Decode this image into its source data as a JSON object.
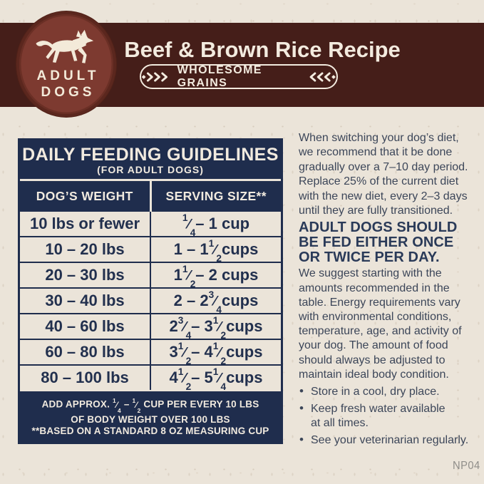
{
  "page": {
    "background": "#ebe4d9",
    "code": "NP04"
  },
  "colors": {
    "band_maroon": "#451e19",
    "badge_red": "#7d3a30",
    "navy": "#1f2d4d",
    "cream_text": "#f3ebdf",
    "body_text": "#3c4659"
  },
  "header": {
    "badge": {
      "line1": "ADULT",
      "line2": "DOGS",
      "icon": "running-dog"
    },
    "title": "Beef & Brown Rice Recipe",
    "banner": {
      "label": "WHOLESOME GRAINS",
      "left_icon": "wheat-chevrons",
      "right_icon": "wheat-chevrons"
    }
  },
  "table": {
    "title": "DAILY FEEDING GUIDELINES",
    "subtitle": "(FOR ADULT DOGS)",
    "columns": [
      "DOG’S WEIGHT",
      "SERVING SIZE**"
    ],
    "rows": [
      {
        "weight": "10 lbs or fewer",
        "serving": "[1/4] – 1 cup"
      },
      {
        "weight": "10 – 20 lbs",
        "serving": "1 – 1 [1/2] cups"
      },
      {
        "weight": "20 – 30 lbs",
        "serving": "1 [1/2] – 2 cups"
      },
      {
        "weight": "30 – 40 lbs",
        "serving": "2 – 2 [3/4] cups"
      },
      {
        "weight": "40 – 60 lbs",
        "serving": "2 [3/4] – 3 [1/2] cups"
      },
      {
        "weight": "60 – 80 lbs",
        "serving": "3 [1/2] – 4 [1/2] cups"
      },
      {
        "weight": "80 – 100 lbs",
        "serving": "4 [1/2] – 5 [1/4] cups"
      }
    ],
    "footnote_overage": "ADD APPROX. [1/4] – [1/2] CUP PER EVERY 10 LBS\nOF BODY WEIGHT OVER 100 LBS",
    "footnote_cup": "**BASED ON A STANDARD 8 OZ MEASURING CUP"
  },
  "info": {
    "bullet_glyph": "•",
    "paragraph1": "When switching your dog’s diet,\nwe recommend that it be done\ngradually over a 7–10 day period.\nReplace 25% of the current diet\nwith the new diet, every 2–3 days\nuntil they are fully transitioned.",
    "heading": "ADULT DOGS SHOULD\nBE FED EITHER ONCE\nOR TWICE PER DAY.",
    "paragraph2": "We suggest starting with the\namounts recommended in the\ntable. Energy requirements vary\nwith environmental conditions,\ntemperature, age, and activity of\nyour dog. The amount of food\nshould always be adjusted to\nmaintain ideal body condition.",
    "bullets": [
      "Store in a cool, dry place.",
      "Keep fresh water available\nat all times.",
      "See your veterinarian regularly."
    ]
  }
}
